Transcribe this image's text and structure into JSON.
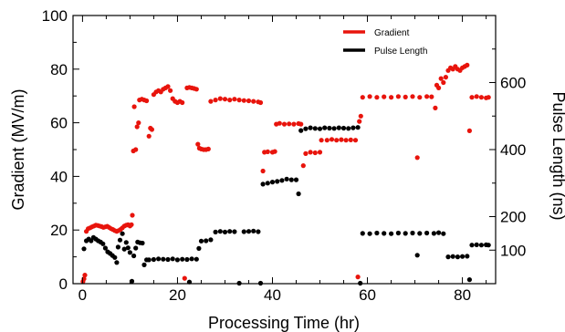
{
  "chart_data": {
    "type": "scatter",
    "xlabel": "Processing Time (hr)",
    "ylabel": "Gradient (MV/m)",
    "y2label": "Pulse Length (ns)",
    "xlim": [
      -2,
      87
    ],
    "ylim": [
      0,
      100
    ],
    "y2lim": [
      0,
      800
    ],
    "x_ticks": [
      0,
      20,
      40,
      60,
      80
    ],
    "y_ticks": [
      0,
      20,
      40,
      60,
      80,
      100
    ],
    "y2_ticks": [
      100,
      200,
      400,
      600
    ],
    "grid": false,
    "legend_position": "top-right",
    "series": [
      {
        "name": "Gradient",
        "color": "#e8140c",
        "axis": "left",
        "points": [
          [
            0.1,
            0.8
          ],
          [
            0.3,
            1.8
          ],
          [
            0.5,
            3.2
          ],
          [
            0.8,
            19.5
          ],
          [
            1.2,
            20.5
          ],
          [
            1.6,
            20.8
          ],
          [
            2.0,
            21.2
          ],
          [
            2.4,
            21.5
          ],
          [
            2.8,
            21.8
          ],
          [
            3.2,
            21.7
          ],
          [
            3.6,
            21.5
          ],
          [
            4.0,
            21.3
          ],
          [
            4.4,
            21.0
          ],
          [
            4.8,
            21.2
          ],
          [
            5.2,
            21.4
          ],
          [
            5.6,
            21.0
          ],
          [
            6.0,
            20.5
          ],
          [
            6.4,
            20.2
          ],
          [
            6.8,
            19.8
          ],
          [
            7.2,
            19.5
          ],
          [
            7.6,
            19.8
          ],
          [
            8.0,
            20.2
          ],
          [
            8.4,
            20.8
          ],
          [
            8.8,
            21.5
          ],
          [
            9.2,
            21.8
          ],
          [
            9.6,
            22.0
          ],
          [
            10.0,
            21.5
          ],
          [
            10.3,
            22.0
          ],
          [
            10.5,
            25.5
          ],
          [
            10.7,
            49.5
          ],
          [
            10.9,
            66.0
          ],
          [
            11.2,
            50.0
          ],
          [
            11.5,
            58.5
          ],
          [
            11.8,
            60.0
          ],
          [
            12.0,
            68.5
          ],
          [
            12.5,
            68.8
          ],
          [
            13.0,
            68.5
          ],
          [
            13.5,
            68.2
          ],
          [
            14.0,
            55.0
          ],
          [
            14.3,
            58.0
          ],
          [
            14.6,
            57.5
          ],
          [
            15.0,
            70.5
          ],
          [
            15.5,
            71.5
          ],
          [
            16.0,
            72.0
          ],
          [
            16.5,
            71.5
          ],
          [
            17.0,
            72.5
          ],
          [
            17.5,
            73.0
          ],
          [
            18.0,
            73.5
          ],
          [
            18.5,
            72.0
          ],
          [
            19.0,
            69.0
          ],
          [
            19.5,
            68.0
          ],
          [
            20.0,
            67.5
          ],
          [
            20.5,
            68.0
          ],
          [
            21.0,
            67.5
          ],
          [
            21.5,
            2.0
          ],
          [
            22.0,
            73.0
          ],
          [
            22.5,
            73.2
          ],
          [
            23.0,
            73.0
          ],
          [
            23.5,
            72.8
          ],
          [
            24.0,
            72.5
          ],
          [
            24.3,
            52.0
          ],
          [
            24.6,
            50.5
          ],
          [
            25.0,
            50.2
          ],
          [
            25.5,
            50.0
          ],
          [
            26.0,
            50.0
          ],
          [
            26.5,
            50.2
          ],
          [
            27.0,
            68.0
          ],
          [
            28.0,
            68.5
          ],
          [
            29.0,
            69.0
          ],
          [
            30.0,
            68.8
          ],
          [
            31.0,
            68.5
          ],
          [
            32.0,
            68.8
          ],
          [
            33.0,
            68.5
          ],
          [
            34.0,
            68.3
          ],
          [
            35.0,
            68.2
          ],
          [
            36.0,
            68.0
          ],
          [
            37.0,
            67.8
          ],
          [
            37.5,
            67.5
          ],
          [
            38.0,
            42.0
          ],
          [
            38.3,
            49.0
          ],
          [
            39.0,
            49.2
          ],
          [
            40.0,
            49.0
          ],
          [
            40.5,
            49.3
          ],
          [
            40.8,
            59.5
          ],
          [
            41.5,
            59.8
          ],
          [
            42.5,
            59.5
          ],
          [
            43.5,
            59.6
          ],
          [
            44.5,
            59.5
          ],
          [
            45.5,
            59.7
          ],
          [
            46.0,
            59.5
          ],
          [
            46.5,
            44.0
          ],
          [
            47.0,
            48.5
          ],
          [
            48.0,
            49.0
          ],
          [
            49.0,
            48.8
          ],
          [
            50.0,
            49.0
          ],
          [
            50.3,
            53.5
          ],
          [
            51.5,
            53.5
          ],
          [
            52.5,
            53.8
          ],
          [
            53.5,
            53.5
          ],
          [
            54.5,
            53.7
          ],
          [
            55.5,
            53.5
          ],
          [
            56.5,
            53.6
          ],
          [
            57.5,
            53.5
          ],
          [
            58.0,
            2.5
          ],
          [
            58.3,
            60.5
          ],
          [
            58.6,
            62.5
          ],
          [
            59.0,
            69.5
          ],
          [
            60.5,
            69.8
          ],
          [
            62.0,
            69.5
          ],
          [
            63.5,
            69.7
          ],
          [
            65.0,
            69.5
          ],
          [
            66.5,
            69.8
          ],
          [
            68.0,
            69.6
          ],
          [
            69.5,
            69.8
          ],
          [
            70.5,
            47.0
          ],
          [
            71.0,
            69.5
          ],
          [
            72.5,
            69.8
          ],
          [
            73.5,
            69.7
          ],
          [
            74.3,
            65.5
          ],
          [
            74.6,
            74.0
          ],
          [
            75.0,
            73.0
          ],
          [
            75.5,
            76.5
          ],
          [
            76.0,
            75.0
          ],
          [
            76.5,
            77.0
          ],
          [
            77.0,
            79.5
          ],
          [
            77.5,
            80.5
          ],
          [
            78.0,
            80.0
          ],
          [
            78.5,
            81.0
          ],
          [
            79.0,
            80.0
          ],
          [
            79.5,
            79.5
          ],
          [
            80.0,
            80.5
          ],
          [
            80.5,
            81.0
          ],
          [
            81.0,
            81.5
          ],
          [
            81.5,
            57.0
          ],
          [
            82.0,
            69.5
          ],
          [
            83.0,
            69.8
          ],
          [
            84.0,
            69.5
          ],
          [
            85.0,
            69.3
          ],
          [
            85.5,
            69.5
          ]
        ]
      },
      {
        "name": "Pulse Length",
        "color": "#000000",
        "axis": "right",
        "points": [
          [
            0.3,
            104
          ],
          [
            0.8,
            128
          ],
          [
            1.3,
            133
          ],
          [
            1.8,
            128
          ],
          [
            2.3,
            138
          ],
          [
            2.8,
            133
          ],
          [
            3.3,
            128
          ],
          [
            3.8,
            124
          ],
          [
            4.3,
            119
          ],
          [
            4.8,
            106
          ],
          [
            5.3,
            95
          ],
          [
            5.8,
            90
          ],
          [
            6.3,
            84
          ],
          [
            6.8,
            78
          ],
          [
            7.2,
            63
          ],
          [
            7.5,
            109
          ],
          [
            7.9,
            130
          ],
          [
            8.4,
            149
          ],
          [
            8.8,
            103
          ],
          [
            9.2,
            123
          ],
          [
            9.6,
            107
          ],
          [
            10.0,
            93
          ],
          [
            10.4,
            7
          ],
          [
            10.8,
            83
          ],
          [
            11.2,
            106
          ],
          [
            11.6,
            124
          ],
          [
            12.1,
            122
          ],
          [
            12.6,
            121
          ],
          [
            13.0,
            56
          ],
          [
            13.5,
            71
          ],
          [
            14.0,
            71
          ],
          [
            15.0,
            72
          ],
          [
            16.0,
            74
          ],
          [
            17.0,
            73
          ],
          [
            18.0,
            72
          ],
          [
            19.0,
            74
          ],
          [
            20.0,
            71
          ],
          [
            21.0,
            73
          ],
          [
            22.0,
            72
          ],
          [
            22.5,
            5
          ],
          [
            23.0,
            74
          ],
          [
            24.0,
            73
          ],
          [
            24.5,
            105
          ],
          [
            25.0,
            127
          ],
          [
            26.0,
            128
          ],
          [
            27.0,
            131
          ],
          [
            28.0,
            154
          ],
          [
            29.0,
            156
          ],
          [
            30.0,
            154
          ],
          [
            31.0,
            156
          ],
          [
            32.0,
            155
          ],
          [
            33.0,
            0
          ],
          [
            34.0,
            155
          ],
          [
            35.0,
            156
          ],
          [
            36.0,
            157
          ],
          [
            37.0,
            155
          ],
          [
            37.5,
            1
          ],
          [
            38.0,
            297
          ],
          [
            39.0,
            300
          ],
          [
            40.0,
            303
          ],
          [
            41.0,
            305
          ],
          [
            42.0,
            308
          ],
          [
            43.0,
            312
          ],
          [
            44.0,
            310
          ],
          [
            45.0,
            310
          ],
          [
            45.5,
            268
          ],
          [
            46.0,
            457
          ],
          [
            47.0,
            462
          ],
          [
            48.0,
            465
          ],
          [
            49.0,
            463
          ],
          [
            50.0,
            462
          ],
          [
            51.0,
            465
          ],
          [
            52.0,
            464
          ],
          [
            53.0,
            463
          ],
          [
            54.0,
            465
          ],
          [
            55.0,
            464
          ],
          [
            56.0,
            463
          ],
          [
            57.0,
            465
          ],
          [
            58.0,
            466
          ],
          [
            58.5,
            0
          ],
          [
            59.0,
            150
          ],
          [
            60.5,
            149
          ],
          [
            62.0,
            151
          ],
          [
            63.5,
            150
          ],
          [
            65.0,
            149
          ],
          [
            66.5,
            151
          ],
          [
            68.0,
            150
          ],
          [
            69.5,
            151
          ],
          [
            70.5,
            85
          ],
          [
            71.0,
            150
          ],
          [
            72.5,
            151
          ],
          [
            74.0,
            150
          ],
          [
            75.0,
            152
          ],
          [
            76.0,
            149
          ],
          [
            77.0,
            80
          ],
          [
            78.0,
            81
          ],
          [
            79.0,
            80
          ],
          [
            80.0,
            81
          ],
          [
            81.0,
            82
          ],
          [
            81.5,
            12
          ],
          [
            82.0,
            115
          ],
          [
            83.0,
            116
          ],
          [
            84.0,
            115
          ],
          [
            85.0,
            116
          ],
          [
            85.5,
            115
          ]
        ]
      }
    ]
  }
}
